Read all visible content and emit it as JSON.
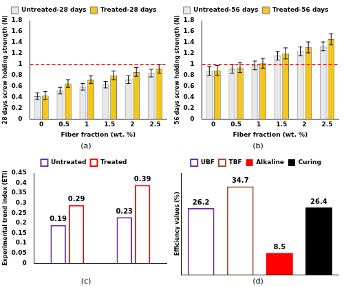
{
  "chart_data": [
    {
      "type": "bar",
      "panel_label": "(a)",
      "x_label": "Fiber fraction (wt. %)",
      "y_label": "28 days screw holding strength (N)",
      "categories": [
        0,
        0.5,
        1,
        1.5,
        2,
        2.5
      ],
      "series": [
        {
          "name": "Untreated-28 days",
          "color": "#e8e8e8",
          "values": [
            0.42,
            0.52,
            0.59,
            0.63,
            0.72,
            0.84
          ],
          "errors": [
            0.06,
            0.06,
            0.06,
            0.06,
            0.07,
            0.07
          ]
        },
        {
          "name": "Treated-28 days",
          "color": "#f5c518",
          "values": [
            0.43,
            0.65,
            0.72,
            0.8,
            0.86,
            0.92
          ],
          "errors": [
            0.07,
            0.07,
            0.07,
            0.08,
            0.08,
            0.08
          ]
        }
      ],
      "ylim": [
        0,
        1.8
      ],
      "yticks": [
        0,
        0.2,
        0.4,
        0.6,
        0.8,
        1,
        1.2,
        1.4,
        1.6,
        1.8
      ],
      "reference_lines": [
        {
          "value": 1,
          "color": "#ff0000",
          "line_style": "dashed"
        }
      ],
      "legend": "top",
      "grid": false
    },
    {
      "type": "bar",
      "panel_label": "(b)",
      "x_label": "Fiber fraction (wt. %)",
      "y_label": "56 days screw holding strength (N)",
      "categories": [
        0,
        0.5,
        1,
        1.5,
        2,
        2.5
      ],
      "series": [
        {
          "name": "Untreated-56 days",
          "color": "#e8e8e8",
          "values": [
            0.88,
            0.92,
            0.98,
            1.16,
            1.24,
            1.33
          ],
          "errors": [
            0.08,
            0.08,
            0.08,
            0.08,
            0.08,
            0.08
          ]
        },
        {
          "name": "Treated-56 days",
          "color": "#f5c518",
          "values": [
            0.89,
            0.94,
            1.02,
            1.2,
            1.31,
            1.46
          ],
          "errors": [
            0.09,
            0.09,
            0.09,
            0.1,
            0.1,
            0.1
          ]
        }
      ],
      "ylim": [
        0,
        1.8
      ],
      "yticks": [
        0,
        0.2,
        0.4,
        0.6,
        0.8,
        1,
        1.2,
        1.4,
        1.6,
        1.8
      ],
      "reference_lines": [
        {
          "value": 1,
          "color": "#ff0000",
          "line_style": "dashed"
        }
      ],
      "legend": "top",
      "grid": false
    },
    {
      "type": "bar",
      "panel_label": "(c)",
      "y_label": "Experimental trend index (ETI)",
      "categories": [
        null,
        null
      ],
      "series": [
        {
          "name": "Untreated",
          "color": "#7030a0",
          "values": [
            0.19,
            0.23
          ]
        },
        {
          "name": "Treated",
          "color": "#ff0000",
          "values": [
            0.29,
            0.39
          ]
        }
      ],
      "ylim": [
        0,
        0.45
      ],
      "yticks": [
        0,
        0.05,
        0.1,
        0.15,
        0.2,
        0.25,
        0.3,
        0.35,
        0.4,
        0.45
      ],
      "data_labels": true,
      "legend": "top",
      "grid": false
    },
    {
      "type": "bar",
      "panel_label": "(d)",
      "y_label": "Efficiency values (%)",
      "categories": [
        "UBF",
        "TBF",
        "Alkaline",
        "Curing"
      ],
      "values": [
        26.2,
        34.7,
        8.5,
        26.4
      ],
      "colors": [
        "#7030a0",
        "#a0522d",
        "#ff0000",
        "#000000"
      ],
      "ylim": [
        0,
        40
      ],
      "tick_labels": false,
      "data_labels": true,
      "legend": "top",
      "grid": false
    }
  ]
}
